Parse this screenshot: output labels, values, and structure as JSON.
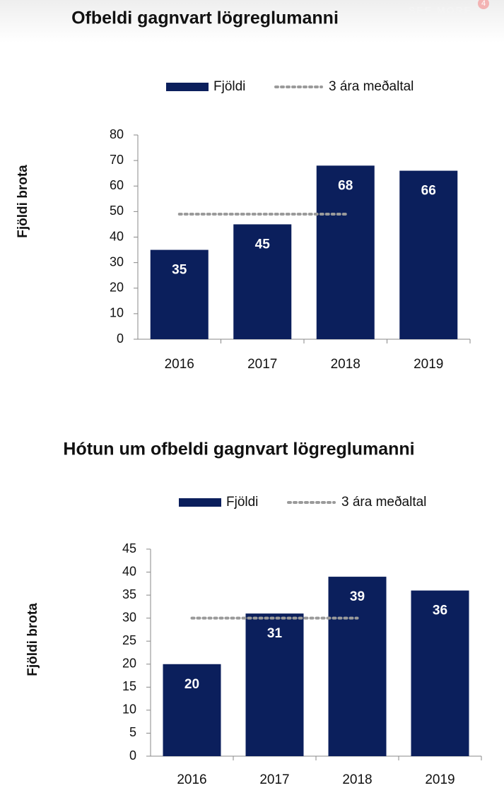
{
  "header": {
    "link": "SEE MORE",
    "badge": "4"
  },
  "chart_data": [
    {
      "type": "bar",
      "title": "Ofbeldi gagnvart lögreglumanni",
      "y_label": "Fjöldi brota",
      "categories": [
        "2016",
        "2017",
        "2018",
        "2019"
      ],
      "series": [
        {
          "name": "Fjöldi",
          "color": "#0b1f5c",
          "values": [
            35,
            45,
            68,
            66
          ]
        },
        {
          "name": "3 ára meðaltal",
          "type": "line",
          "style": "dotted",
          "color": "#9a9a9a",
          "values": [
            49,
            49,
            49,
            null
          ]
        }
      ],
      "ylim": [
        0,
        80
      ],
      "yticks": [
        0,
        10,
        20,
        30,
        40,
        50,
        60,
        70,
        80
      ],
      "grid": false,
      "legend": "top"
    },
    {
      "type": "bar",
      "title": "Hótun um ofbeldi gagnvart lögreglumanni",
      "y_label": "Fjöldi brota",
      "categories": [
        "2016",
        "2017",
        "2018",
        "2019"
      ],
      "series": [
        {
          "name": "Fjöldi",
          "color": "#0b1f5c",
          "values": [
            20,
            31,
            39,
            36
          ]
        },
        {
          "name": "3 ára meðaltal",
          "type": "line",
          "style": "dotted",
          "color": "#9a9a9a",
          "values": [
            30,
            30,
            30,
            null
          ]
        }
      ],
      "ylim": [
        0,
        45
      ],
      "yticks": [
        0,
        5,
        10,
        15,
        20,
        25,
        30,
        35,
        40,
        45
      ],
      "grid": false,
      "legend": "top"
    }
  ]
}
